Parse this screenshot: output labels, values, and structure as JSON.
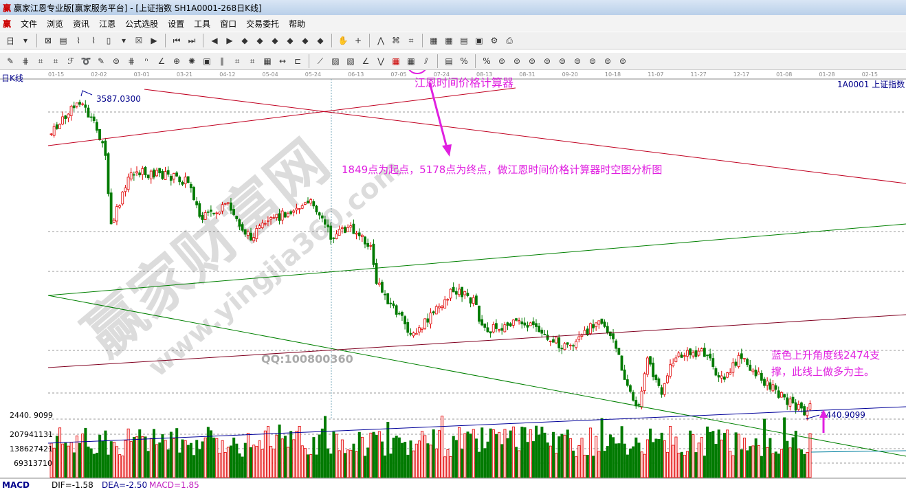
{
  "window": {
    "title": "赢家江恩专业版[赢家服务平台] - [上证指数  SH1A0001-268日K线]",
    "logo": "赢"
  },
  "menu": [
    "文件",
    "浏览",
    "资讯",
    "江恩",
    "公式选股",
    "设置",
    "工具",
    "窗口",
    "交易委托",
    "帮助"
  ],
  "toolbar1": [
    "period-day",
    "dropdown",
    "draw",
    "notes",
    "chart-a",
    "chart-b",
    "candle",
    "dropdown",
    "cross",
    "flag",
    "first",
    "last",
    "prev",
    "next",
    "zoom-left",
    "zoom-right",
    "zoom-both",
    "zoom-in",
    "zoom-out",
    "zoom-all",
    "hand",
    "crosshair",
    "line",
    "calc",
    "gear",
    "calendar",
    "calculator",
    "report",
    "save",
    "network",
    "print"
  ],
  "toolbar2": [
    "pen",
    "grid",
    "gann-fan",
    "gann-square",
    "fib",
    "spiral",
    "brush",
    "circle",
    "parallel",
    "n2",
    "angle",
    "target",
    "radar",
    "box",
    "line-v",
    "divine",
    "win",
    "calendar-grid",
    "arrow-h",
    "rect",
    "fan",
    "sq-fan",
    "box-fan",
    "angle-line",
    "v-line",
    "time-price-calculator",
    "grid2",
    "multi-line",
    "table",
    "percent-mark",
    "percent",
    "g1",
    "g2",
    "g3",
    "g4",
    "g5",
    "g6",
    "g7",
    "g8",
    "g9"
  ],
  "chart": {
    "period_label": "日K线",
    "dates": [
      "01-15",
      "02-02",
      "03-01",
      "03-21",
      "04-12",
      "05-04",
      "05-24",
      "06-13",
      "07-05",
      "07-24",
      "08-13",
      "08-31",
      "09-20",
      "10-18",
      "11-07",
      "11-27",
      "12-17",
      "01-08",
      "01-28",
      "02-15"
    ],
    "symbol_label": "1A0001  上证指数",
    "high_label": "3587.0300",
    "low_label": "2440.9099",
    "price_axis_label": "2440. 9099",
    "volume_axis": [
      "207941131",
      "138627421",
      "69313710"
    ],
    "indicator": {
      "name": "MACD",
      "dif": "DIF=-1.58",
      "dea": "DEA=-2.50",
      "macd": "MACD=1.85"
    },
    "annotations": {
      "tool_name": "江恩时间价格计算器",
      "description": "1849点为起点，5178点为终点，做江恩时间价格计算器时空图分析图",
      "support_line1": "蓝色上升角度线2474支",
      "support_line2": "撑，此线上做多为主。",
      "qq": "QQ:100800360"
    },
    "watermark": {
      "cn": "赢家财富网",
      "url": "www.yingjia360.com"
    },
    "colors": {
      "up": "#e00000",
      "down": "#007a00",
      "annotation": "#e020e0",
      "blue_line": "#000099"
    }
  }
}
